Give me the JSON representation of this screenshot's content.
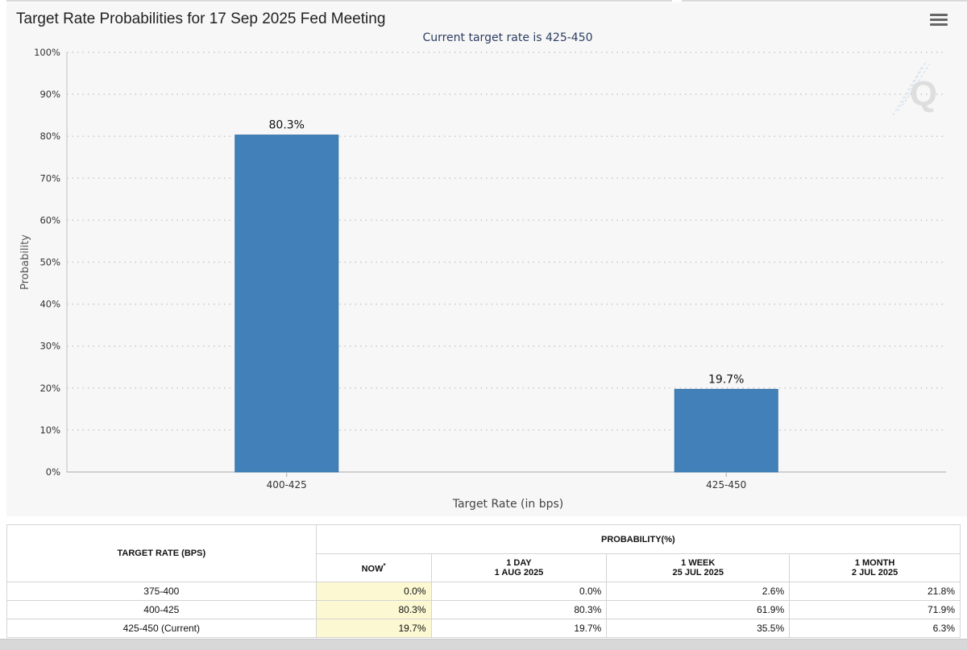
{
  "chart": {
    "title": "Target Rate Probabilities for 17 Sep 2025 Fed Meeting",
    "subtitle": "Current target rate is 425-450",
    "menu_icon": "hamburger-menu-icon",
    "watermark": "Q",
    "bar_color": "#4180b8"
  },
  "chart_data": {
    "type": "bar",
    "categories": [
      "400-425",
      "425-450"
    ],
    "values": [
      80.3,
      19.7
    ],
    "data_labels": [
      "80.3%",
      "19.7%"
    ],
    "title": "Target Rate Probabilities for 17 Sep 2025 Fed Meeting",
    "subtitle": "Current target rate is 425-450",
    "xlabel": "Target Rate (in bps)",
    "ylabel": "Probability",
    "ylim": [
      0,
      100
    ],
    "yticks": [
      "0%",
      "10%",
      "20%",
      "30%",
      "40%",
      "50%",
      "60%",
      "70%",
      "80%",
      "90%",
      "100%"
    ],
    "grid": true
  },
  "table": {
    "col_target": "TARGET RATE (BPS)",
    "col_probability": "PROBABILITY(%)",
    "sub_now": "NOW",
    "sub_now_mark": "*",
    "sub_day_line1": "1 DAY",
    "sub_day_line2": "1 AUG 2025",
    "sub_week_line1": "1 WEEK",
    "sub_week_line2": "25 JUL 2025",
    "sub_month_line1": "1 MONTH",
    "sub_month_line2": "2 JUL 2025",
    "rows": [
      {
        "rate": "375-400",
        "now": "0.0%",
        "day": "0.0%",
        "week": "2.6%",
        "month": "21.8%"
      },
      {
        "rate": "400-425",
        "now": "80.3%",
        "day": "80.3%",
        "week": "61.9%",
        "month": "71.9%"
      },
      {
        "rate": "425-450 (Current)",
        "now": "19.7%",
        "day": "19.7%",
        "week": "35.5%",
        "month": "6.3%"
      }
    ]
  }
}
